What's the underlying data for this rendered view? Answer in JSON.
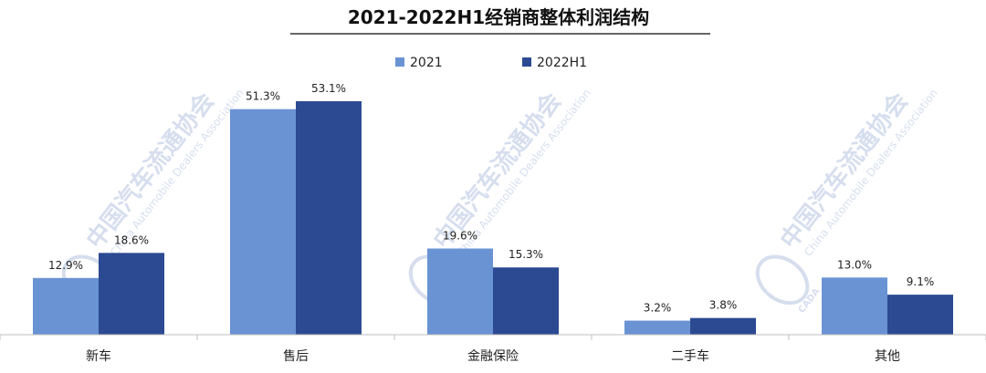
{
  "chart_data": {
    "type": "bar",
    "title": "2021-2022H1经销商整体利润结构",
    "categories": [
      "新车",
      "售后",
      "金融保险",
      "二手车",
      "其他"
    ],
    "series": [
      {
        "name": "2021",
        "values": [
          12.9,
          51.3,
          19.6,
          3.2,
          13.0
        ],
        "labels": [
          "12.9%",
          "51.3%",
          "19.6%",
          "3.2%",
          "13.0%"
        ],
        "color": "#6a93d4"
      },
      {
        "name": "2022H1",
        "values": [
          18.6,
          53.1,
          15.3,
          3.8,
          9.1
        ],
        "labels": [
          "18.6%",
          "53.1%",
          "15.3%",
          "3.8%",
          "9.1%"
        ],
        "color": "#2c4a92"
      }
    ],
    "ylim": [
      0,
      60
    ],
    "grid": false,
    "legend_position": "top-center"
  },
  "watermark": {
    "cn": "中国汽车流通协会",
    "en": "China Automobile Dealers Association",
    "logo": "CADA"
  }
}
